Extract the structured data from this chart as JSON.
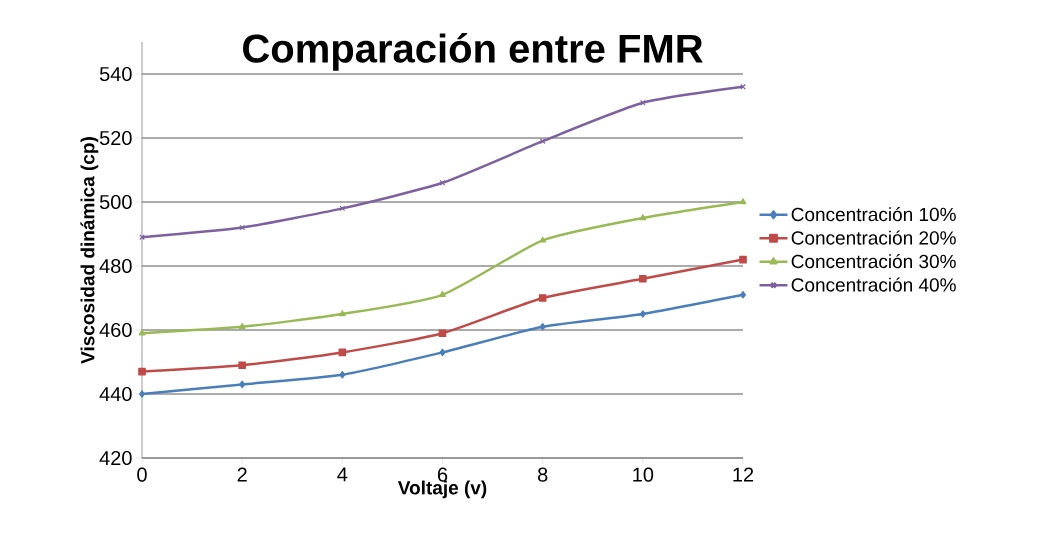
{
  "chart_data": {
    "type": "line",
    "title": "Comparación entre FMR",
    "xlabel": "Voltaje (v)",
    "ylabel": "Viscosidad dinámica (cp)",
    "x": [
      0,
      2,
      4,
      6,
      8,
      10,
      12
    ],
    "xlim": [
      0,
      12
    ],
    "xticks": [
      0,
      2,
      4,
      6,
      8,
      10,
      12
    ],
    "ylim": [
      420,
      550
    ],
    "yticks": [
      420,
      440,
      460,
      480,
      500,
      520,
      540
    ],
    "grid": "y",
    "legend": "right",
    "series": [
      {
        "name": "Concentración 10%",
        "color": "#4a7ebb",
        "marker": "diamond",
        "values": [
          440,
          443,
          446,
          453,
          461,
          465,
          471
        ]
      },
      {
        "name": "Concentración 20%",
        "color": "#be4b48",
        "marker": "square",
        "values": [
          447,
          449,
          453,
          459,
          470,
          476,
          482
        ]
      },
      {
        "name": "Concentración 30%",
        "color": "#98b954",
        "marker": "triangle",
        "values": [
          459,
          461,
          465,
          471,
          488,
          495,
          500
        ]
      },
      {
        "name": "Concentración 40%",
        "color": "#7d60a0",
        "marker": "cross",
        "values": [
          489,
          492,
          498,
          506,
          519,
          531,
          536
        ]
      }
    ]
  }
}
